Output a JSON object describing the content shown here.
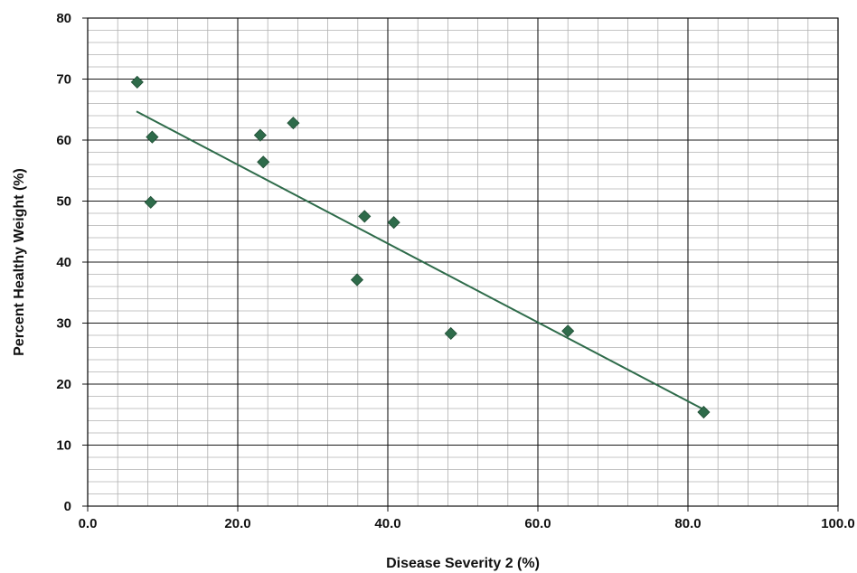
{
  "chart_data": {
    "type": "scatter",
    "title": "",
    "xlabel": "Disease Severity 2 (%)",
    "ylabel": "Percent Healthy Weight (%)",
    "xlim": [
      0,
      100
    ],
    "ylim": [
      0,
      80
    ],
    "x_major_ticks": [
      "0.0",
      "20.0",
      "40.0",
      "60.0",
      "80.0",
      "100.0"
    ],
    "y_major_ticks": [
      "0",
      "10",
      "20",
      "30",
      "40",
      "50",
      "60",
      "70",
      "80"
    ],
    "grid": true,
    "legend": "none",
    "points": [
      {
        "x": 6.6,
        "y": 69.5
      },
      {
        "x": 8.6,
        "y": 60.5
      },
      {
        "x": 8.4,
        "y": 49.8
      },
      {
        "x": 23.0,
        "y": 60.8
      },
      {
        "x": 23.4,
        "y": 56.4
      },
      {
        "x": 27.4,
        "y": 62.8
      },
      {
        "x": 36.9,
        "y": 47.5
      },
      {
        "x": 40.8,
        "y": 46.5
      },
      {
        "x": 35.9,
        "y": 37.1
      },
      {
        "x": 48.4,
        "y": 28.3
      },
      {
        "x": 64.0,
        "y": 28.7
      },
      {
        "x": 82.1,
        "y": 15.4
      }
    ],
    "trendline": {
      "x": [
        6.5,
        82.0
      ],
      "y": [
        64.7,
        15.9
      ]
    },
    "colors": {
      "marker": "#2e6b4a",
      "trendline": "#2e6b4a",
      "major_grid": "#1a1a1a",
      "minor_grid": "#b0b0b0"
    }
  }
}
